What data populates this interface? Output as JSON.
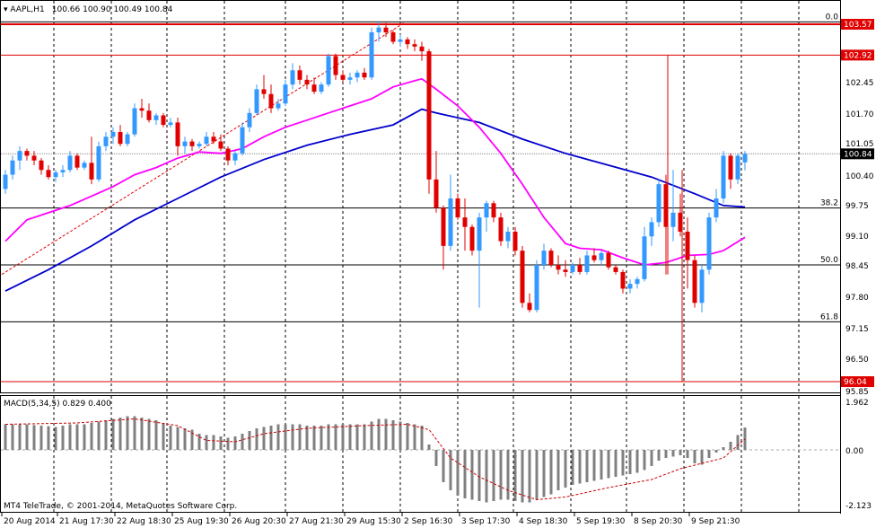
{
  "header": {
    "symbol": "AAPL,H1",
    "ohlc": "100.66 100.90 100.49 100.84"
  },
  "macd_header": "MACD(5,34,5) 0.829 0.400",
  "copyright": "MT4 TeleTrade, © 2001-2014, MetaQuotes Software Corp.",
  "price_axis": [
    "103.57",
    "102.92",
    "102.45",
    "101.70",
    "101.05",
    "100.84",
    "100.40",
    "99.75",
    "99.10",
    "98.45",
    "97.80",
    "97.15",
    "96.50",
    "96.04",
    "95.85"
  ],
  "macd_axis": [
    "1.962",
    "0.00",
    "-2.123"
  ],
  "price_tags": {
    "top": "103.57",
    "upper": "102.92",
    "current": "100.84",
    "low": "96.04"
  },
  "fib_labels": [
    "0.0",
    "38.2",
    "50.0",
    "61.8"
  ],
  "time_axis": [
    "20 Aug 2014",
    "21 Aug 17:30",
    "22 Aug 18:30",
    "25 Aug 19:30",
    "26 Aug 20:30",
    "27 Aug 21:30",
    "29 Aug 15:30",
    "2 Sep 16:30",
    "3 Sep 17:30",
    "4 Sep 18:30",
    "5 Sep 19:30",
    "8 Sep 20:30",
    "9 Sep 21:30"
  ],
  "colors": {
    "bull": "#3399ff",
    "bear": "#e00000",
    "ma_fast": "#ff00ff",
    "ma_slow": "#0000cc",
    "hline": "#e00000",
    "grid": "#000000",
    "macd_hist": "#808080",
    "macd_signal": "#cc0000"
  },
  "chart_data": {
    "type": "candlestick",
    "instrument": "AAPL",
    "timeframe": "H1",
    "current_price": 100.84,
    "horizontal_lines": [
      103.57,
      102.92,
      96.04
    ],
    "fib_levels": [
      {
        "label": "0.0",
        "price": 103.62
      },
      {
        "label": "38.2",
        "price": 99.7
      },
      {
        "label": "50.0",
        "price": 98.5
      },
      {
        "label": "61.8",
        "price": 97.3
      }
    ],
    "candles": [
      [
        100.1,
        100.5,
        100.0,
        100.4
      ],
      [
        100.4,
        100.8,
        100.3,
        100.7
      ],
      [
        100.7,
        101.0,
        100.5,
        100.9
      ],
      [
        100.9,
        100.95,
        100.7,
        100.8
      ],
      [
        100.8,
        100.9,
        100.6,
        100.7
      ],
      [
        100.7,
        100.75,
        100.4,
        100.5
      ],
      [
        100.5,
        100.6,
        100.3,
        100.35
      ],
      [
        100.35,
        100.5,
        100.25,
        100.45
      ],
      [
        100.45,
        100.6,
        100.35,
        100.5
      ],
      [
        100.5,
        100.9,
        100.45,
        100.8
      ],
      [
        100.8,
        100.85,
        100.5,
        100.55
      ],
      [
        100.55,
        100.7,
        100.5,
        100.65
      ],
      [
        100.65,
        101.2,
        100.2,
        100.3
      ],
      [
        100.3,
        101.1,
        100.25,
        101.0
      ],
      [
        101.0,
        101.3,
        100.9,
        101.2
      ],
      [
        101.2,
        101.4,
        101.05,
        101.3
      ],
      [
        101.3,
        101.45,
        101.0,
        101.05
      ],
      [
        101.05,
        101.3,
        101.0,
        101.25
      ],
      [
        101.25,
        101.9,
        101.2,
        101.8
      ],
      [
        101.8,
        102.0,
        101.6,
        101.75
      ],
      [
        101.75,
        101.9,
        101.5,
        101.55
      ],
      [
        101.55,
        101.7,
        101.45,
        101.65
      ],
      [
        101.65,
        101.7,
        101.4,
        101.45
      ],
      [
        101.45,
        101.6,
        101.4,
        101.5
      ],
      [
        101.5,
        101.6,
        100.8,
        101.0
      ],
      [
        101.0,
        101.2,
        100.85,
        101.1
      ],
      [
        101.1,
        101.15,
        100.9,
        101.0
      ],
      [
        101.0,
        101.1,
        100.95,
        101.05
      ],
      [
        101.05,
        101.3,
        101.0,
        101.2
      ],
      [
        101.2,
        101.3,
        101.05,
        101.1
      ],
      [
        101.1,
        101.25,
        100.9,
        100.95
      ],
      [
        100.95,
        101.0,
        100.6,
        100.7
      ],
      [
        100.7,
        100.9,
        100.6,
        100.85
      ],
      [
        100.85,
        101.5,
        100.8,
        101.4
      ],
      [
        101.4,
        101.8,
        101.3,
        101.7
      ],
      [
        101.7,
        102.3,
        101.65,
        102.2
      ],
      [
        102.2,
        102.5,
        102.0,
        102.1
      ],
      [
        102.1,
        102.3,
        101.7,
        101.8
      ],
      [
        101.8,
        102.0,
        101.75,
        101.9
      ],
      [
        101.9,
        102.4,
        101.85,
        102.3
      ],
      [
        102.3,
        102.75,
        102.2,
        102.6
      ],
      [
        102.6,
        102.7,
        102.3,
        102.4
      ],
      [
        102.4,
        102.5,
        102.2,
        102.3
      ],
      [
        102.3,
        102.45,
        102.1,
        102.15
      ],
      [
        102.15,
        102.35,
        102.1,
        102.3
      ],
      [
        102.3,
        102.95,
        102.25,
        102.9
      ],
      [
        102.9,
        102.95,
        102.4,
        102.5
      ],
      [
        102.5,
        102.6,
        102.35,
        102.4
      ],
      [
        102.4,
        102.55,
        102.3,
        102.45
      ],
      [
        102.45,
        102.6,
        102.35,
        102.55
      ],
      [
        102.55,
        102.65,
        102.4,
        102.45
      ],
      [
        102.45,
        103.5,
        102.4,
        103.4
      ],
      [
        103.4,
        103.62,
        103.2,
        103.5
      ],
      [
        103.5,
        103.6,
        103.3,
        103.4
      ],
      [
        103.4,
        103.45,
        103.15,
        103.2
      ],
      [
        103.2,
        103.35,
        103.1,
        103.25
      ],
      [
        103.25,
        103.3,
        103.05,
        103.15
      ],
      [
        103.15,
        103.25,
        103.0,
        103.1
      ],
      [
        103.1,
        103.2,
        102.8,
        103.0
      ],
      [
        103.0,
        103.05,
        100.0,
        100.3
      ],
      [
        100.3,
        100.9,
        99.6,
        99.7
      ],
      [
        99.7,
        99.75,
        98.4,
        98.9
      ],
      [
        98.9,
        100.4,
        98.8,
        99.9
      ],
      [
        99.9,
        100.0,
        99.45,
        99.5
      ],
      [
        99.5,
        99.9,
        98.8,
        99.3
      ],
      [
        99.3,
        99.35,
        98.7,
        98.8
      ],
      [
        98.8,
        99.6,
        97.6,
        99.5
      ],
      [
        99.5,
        99.85,
        99.2,
        99.8
      ],
      [
        99.8,
        99.85,
        99.4,
        99.5
      ],
      [
        99.5,
        99.6,
        98.9,
        99.0
      ],
      [
        99.0,
        99.3,
        98.85,
        99.2
      ],
      [
        99.2,
        99.3,
        98.7,
        98.8
      ],
      [
        98.8,
        98.9,
        97.6,
        97.7
      ],
      [
        97.7,
        97.9,
        97.5,
        97.55
      ],
      [
        97.55,
        98.6,
        97.5,
        98.5
      ],
      [
        98.5,
        98.95,
        98.4,
        98.8
      ],
      [
        98.8,
        98.85,
        98.45,
        98.5
      ],
      [
        98.5,
        98.7,
        98.3,
        98.4
      ],
      [
        98.4,
        98.6,
        98.25,
        98.35
      ],
      [
        98.35,
        98.55,
        98.3,
        98.5
      ],
      [
        98.5,
        98.65,
        98.3,
        98.35
      ],
      [
        98.35,
        98.8,
        98.3,
        98.7
      ],
      [
        98.7,
        98.85,
        98.55,
        98.6
      ],
      [
        98.6,
        98.8,
        98.5,
        98.75
      ],
      [
        98.75,
        98.8,
        98.4,
        98.45
      ],
      [
        98.45,
        98.5,
        98.3,
        98.35
      ],
      [
        98.35,
        98.4,
        97.9,
        98.0
      ],
      [
        98.0,
        98.2,
        97.9,
        98.1
      ],
      [
        98.1,
        98.25,
        98.0,
        98.2
      ],
      [
        98.2,
        99.3,
        98.15,
        99.1
      ],
      [
        99.1,
        99.5,
        98.9,
        99.4
      ],
      [
        99.4,
        100.3,
        99.3,
        100.2
      ],
      [
        100.2,
        100.4,
        98.3,
        99.3
      ],
      [
        99.3,
        100.5,
        99.0,
        99.6
      ],
      [
        99.6,
        100.0,
        99.1,
        99.2
      ],
      [
        99.2,
        99.5,
        98.0,
        98.6
      ],
      [
        98.6,
        98.7,
        97.6,
        97.7
      ],
      [
        97.7,
        98.5,
        97.5,
        98.4
      ],
      [
        98.4,
        99.6,
        98.3,
        99.5
      ],
      [
        99.5,
        100.1,
        99.4,
        99.9
      ],
      [
        99.9,
        100.9,
        99.8,
        100.8
      ],
      [
        100.8,
        100.85,
        100.1,
        100.3
      ],
      [
        100.3,
        100.85,
        100.2,
        100.8
      ],
      [
        100.66,
        100.9,
        100.49,
        100.84
      ]
    ],
    "ma_fast": [
      [
        0,
        99.0
      ],
      [
        3,
        99.45
      ],
      [
        6,
        99.6
      ],
      [
        9,
        99.75
      ],
      [
        12,
        99.95
      ],
      [
        15,
        100.15
      ],
      [
        18,
        100.4
      ],
      [
        21,
        100.55
      ],
      [
        24,
        100.75
      ],
      [
        27,
        100.88
      ],
      [
        30,
        100.85
      ],
      [
        33,
        100.95
      ],
      [
        36,
        101.2
      ],
      [
        39,
        101.4
      ],
      [
        42,
        101.55
      ],
      [
        45,
        101.7
      ],
      [
        48,
        101.85
      ],
      [
        51,
        102.0
      ],
      [
        54,
        102.25
      ],
      [
        57,
        102.38
      ],
      [
        58,
        102.42
      ],
      [
        60,
        102.2
      ],
      [
        63,
        101.85
      ],
      [
        66,
        101.4
      ],
      [
        69,
        100.85
      ],
      [
        72,
        100.2
      ],
      [
        75,
        99.5
      ],
      [
        78,
        98.95
      ],
      [
        80,
        98.85
      ],
      [
        83,
        98.82
      ],
      [
        86,
        98.65
      ],
      [
        89,
        98.5
      ],
      [
        92,
        98.55
      ],
      [
        95,
        98.7
      ],
      [
        98,
        98.72
      ],
      [
        100,
        98.8
      ],
      [
        103,
        99.08
      ]
    ],
    "ma_slow": [
      [
        0,
        97.95
      ],
      [
        6,
        98.4
      ],
      [
        12,
        98.9
      ],
      [
        18,
        99.45
      ],
      [
        24,
        99.9
      ],
      [
        30,
        100.35
      ],
      [
        36,
        100.72
      ],
      [
        42,
        101.02
      ],
      [
        48,
        101.25
      ],
      [
        54,
        101.45
      ],
      [
        58,
        101.78
      ],
      [
        60,
        101.7
      ],
      [
        66,
        101.5
      ],
      [
        72,
        101.15
      ],
      [
        78,
        100.85
      ],
      [
        84,
        100.6
      ],
      [
        90,
        100.35
      ],
      [
        96,
        100.0
      ],
      [
        100,
        99.75
      ],
      [
        103,
        99.72
      ]
    ],
    "macd_histogram": [
      0.95,
      0.95,
      0.95,
      0.95,
      0.92,
      0.9,
      0.88,
      0.85,
      0.9,
      0.95,
      0.95,
      0.95,
      1.0,
      1.05,
      1.1,
      1.15,
      1.2,
      1.25,
      1.25,
      1.2,
      1.15,
      1.1,
      1.0,
      0.9,
      0.85,
      0.8,
      0.75,
      0.6,
      0.55,
      0.55,
      0.5,
      0.45,
      0.5,
      0.6,
      0.7,
      0.8,
      0.85,
      0.9,
      0.95,
      0.95,
      0.95,
      0.95,
      0.9,
      0.9,
      0.9,
      0.95,
      0.95,
      0.95,
      0.95,
      0.95,
      0.95,
      1.05,
      1.15,
      1.15,
      1.1,
      1.05,
      1.0,
      0.95,
      0.9,
      0.2,
      -0.6,
      -1.2,
      -1.5,
      -1.7,
      -1.8,
      -1.85,
      -1.9,
      -1.95,
      -1.9,
      -1.85,
      -1.85,
      -1.9,
      -1.95,
      -1.95,
      -1.85,
      -1.75,
      -1.65,
      -1.5,
      -1.4,
      -1.3,
      -1.25,
      -1.2,
      -1.15,
      -1.1,
      -1.05,
      -1.0,
      -0.95,
      -0.9,
      -0.85,
      -0.75,
      -0.6,
      -0.4,
      -0.3,
      -0.25,
      -0.2,
      -0.3,
      -0.5,
      -0.55,
      -0.3,
      -0.1,
      0.1,
      0.3,
      0.55,
      0.829
    ],
    "macd_signal": [
      [
        0,
        0.95
      ],
      [
        10,
        1.0
      ],
      [
        18,
        1.15
      ],
      [
        24,
        0.9
      ],
      [
        28,
        0.35
      ],
      [
        32,
        0.3
      ],
      [
        36,
        0.6
      ],
      [
        42,
        0.8
      ],
      [
        50,
        0.9
      ],
      [
        56,
        0.95
      ],
      [
        59,
        0.75
      ],
      [
        62,
        -0.3
      ],
      [
        66,
        -1.0
      ],
      [
        70,
        -1.5
      ],
      [
        74,
        -1.85
      ],
      [
        78,
        -1.75
      ],
      [
        84,
        -1.4
      ],
      [
        90,
        -1.1
      ],
      [
        94,
        -0.7
      ],
      [
        97,
        -0.5
      ],
      [
        100,
        -0.3
      ],
      [
        103,
        0.4
      ]
    ],
    "macd_range": [
      -2.123,
      1.962
    ]
  }
}
